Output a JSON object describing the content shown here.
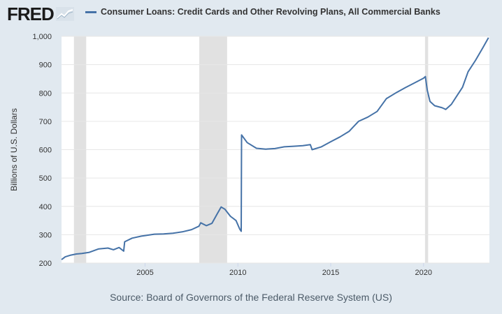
{
  "brand": {
    "logo_text": "FRED",
    "logo_icon": "chart-line-icon"
  },
  "colors": {
    "line": "#4572a7",
    "recession": "#e1e1e1",
    "grid": "#e6e6e6",
    "background": "#e1e9f0",
    "plot_bg": "#ffffff"
  },
  "footer": {
    "source": "Source: Board of Governors of the Federal Reserve System (US)"
  },
  "chart_data": {
    "type": "line",
    "title": "",
    "xlabel": "",
    "ylabel": "Billions of U.S. Dollars",
    "ylim": [
      200,
      1000
    ],
    "xlim": [
      2000.5,
      2023.55
    ],
    "yticks": [
      200,
      300,
      400,
      500,
      600,
      700,
      800,
      900,
      1000
    ],
    "ytick_labels": [
      "200",
      "300",
      "400",
      "500",
      "600",
      "700",
      "800",
      "900",
      "1,000"
    ],
    "xticks": [
      2005,
      2010,
      2015,
      2020
    ],
    "xtick_labels": [
      "2005",
      "2010",
      "2015",
      "2020"
    ],
    "grid": true,
    "recessions": [
      [
        2001.17,
        2001.83
      ],
      [
        2007.92,
        2009.42
      ],
      [
        2020.08,
        2020.25
      ]
    ],
    "series": [
      {
        "name": "Consumer Loans: Credit Cards and Other Revolving Plans, All Commercial Banks",
        "x": [
          2000.5,
          2000.7,
          2001.0,
          2001.3,
          2001.6,
          2002.0,
          2002.5,
          2003.0,
          2003.3,
          2003.6,
          2003.85,
          2003.9,
          2004.3,
          2004.8,
          2005.0,
          2005.5,
          2006.0,
          2006.5,
          2007.0,
          2007.5,
          2007.9,
          2008.0,
          2008.3,
          2008.6,
          2008.9,
          2009.1,
          2009.3,
          2009.6,
          2009.9,
          2010.1,
          2010.18,
          2010.2,
          2010.5,
          2011.0,
          2011.5,
          2012.0,
          2012.5,
          2013.0,
          2013.5,
          2013.9,
          2014.0,
          2014.5,
          2015.0,
          2015.5,
          2016.0,
          2016.5,
          2017.0,
          2017.5,
          2018.0,
          2018.5,
          2019.0,
          2019.5,
          2020.0,
          2020.1,
          2020.2,
          2020.35,
          2020.6,
          2021.0,
          2021.2,
          2021.5,
          2021.8,
          2022.1,
          2022.4,
          2022.8,
          2023.2,
          2023.5
        ],
        "values": [
          212,
          222,
          228,
          232,
          234,
          238,
          250,
          253,
          247,
          255,
          242,
          275,
          288,
          295,
          297,
          302,
          303,
          305,
          310,
          318,
          330,
          342,
          332,
          340,
          375,
          398,
          390,
          365,
          350,
          320,
          312,
          652,
          625,
          605,
          602,
          604,
          610,
          612,
          614,
          618,
          600,
          610,
          628,
          645,
          665,
          700,
          715,
          735,
          780,
          800,
          818,
          835,
          852,
          858,
          810,
          770,
          755,
          748,
          742,
          760,
          790,
          820,
          875,
          915,
          960,
          995
        ]
      }
    ]
  }
}
